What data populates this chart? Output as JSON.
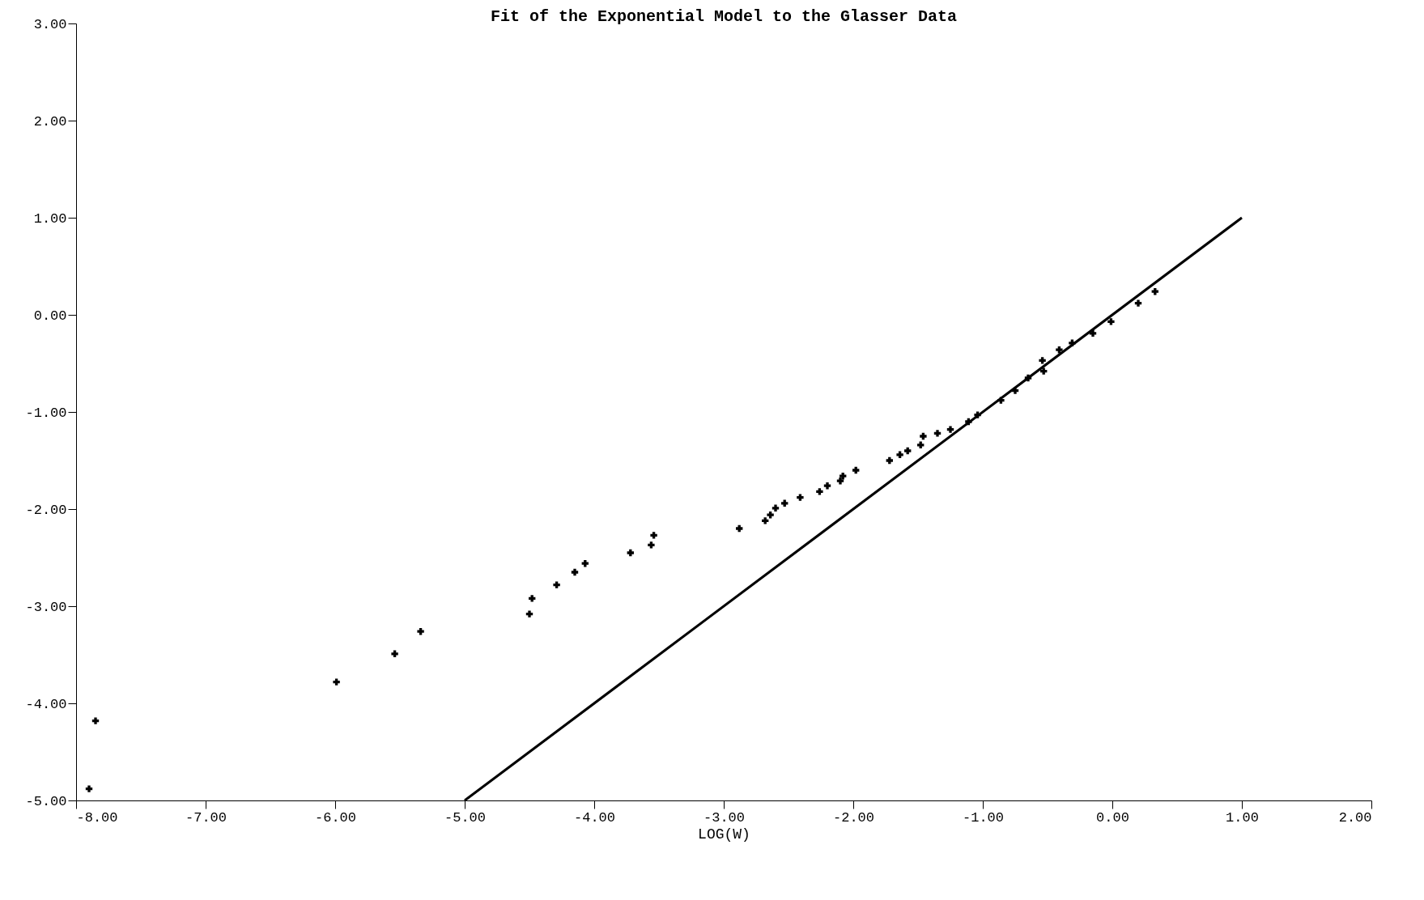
{
  "chart_data": {
    "type": "scatter",
    "title": "Fit of the Exponential Model to the Glasser Data",
    "xlabel": "LOG(W)",
    "xlim": [
      -8,
      2
    ],
    "ylim": [
      -5,
      3
    ],
    "xticks": [
      {
        "value": -8,
        "label": "-8.00"
      },
      {
        "value": -7,
        "label": "-7.00"
      },
      {
        "value": -6,
        "label": "-6.00"
      },
      {
        "value": -5,
        "label": "-5.00"
      },
      {
        "value": -4,
        "label": "-4.00"
      },
      {
        "value": -3,
        "label": "-3.00"
      },
      {
        "value": -2,
        "label": "-2.00"
      },
      {
        "value": -1,
        "label": "-1.00"
      },
      {
        "value": 0,
        "label": "0.00"
      },
      {
        "value": 1,
        "label": "1.00"
      },
      {
        "value": 2,
        "label": "2.00"
      }
    ],
    "yticks": [
      {
        "value": -5,
        "label": "-5.00"
      },
      {
        "value": -4,
        "label": "-4.00"
      },
      {
        "value": -3,
        "label": "-3.00"
      },
      {
        "value": -2,
        "label": "-2.00"
      },
      {
        "value": -1,
        "label": "-1.00"
      },
      {
        "value": 0,
        "label": "0.00"
      },
      {
        "value": 1,
        "label": "1.00"
      },
      {
        "value": 2,
        "label": "2.00"
      },
      {
        "value": 3,
        "label": "3.00"
      }
    ],
    "series": [
      {
        "marker": "cross",
        "color": "#000000",
        "x": [
          -7.9,
          -7.85,
          -5.99,
          -5.54,
          -5.34,
          -4.5,
          -4.48,
          -4.29,
          -4.15,
          -4.07,
          -3.72,
          -3.56,
          -3.54,
          -2.88,
          -2.68,
          -2.64,
          -2.6,
          -2.53,
          -2.41,
          -2.26,
          -2.2,
          -2.1,
          -2.08,
          -1.98,
          -1.72,
          -1.64,
          -1.58,
          -1.48,
          -1.46,
          -1.35,
          -1.25,
          -1.11,
          -1.04,
          -0.86,
          -0.75,
          -0.65,
          -0.54,
          -0.53,
          -0.41,
          -0.31,
          -0.15,
          -0.01,
          0.2,
          0.33
        ],
        "values": [
          -4.88,
          -4.18,
          -3.78,
          -3.49,
          -3.26,
          -3.08,
          -2.92,
          -2.78,
          -2.65,
          -2.56,
          -2.45,
          -2.37,
          -2.27,
          -2.2,
          -2.12,
          -2.06,
          -1.99,
          -1.94,
          -1.88,
          -1.82,
          -1.76,
          -1.71,
          -1.66,
          -1.6,
          -1.5,
          -1.44,
          -1.4,
          -1.34,
          -1.25,
          -1.22,
          -1.18,
          -1.1,
          -1.03,
          -0.88,
          -0.78,
          -0.65,
          -0.47,
          -0.58,
          -0.36,
          -0.29,
          -0.19,
          -0.07,
          0.12,
          0.24
        ]
      },
      {
        "type": "line",
        "color": "#000000",
        "x": [
          -5,
          1
        ],
        "values": [
          -5,
          1
        ]
      }
    ]
  }
}
